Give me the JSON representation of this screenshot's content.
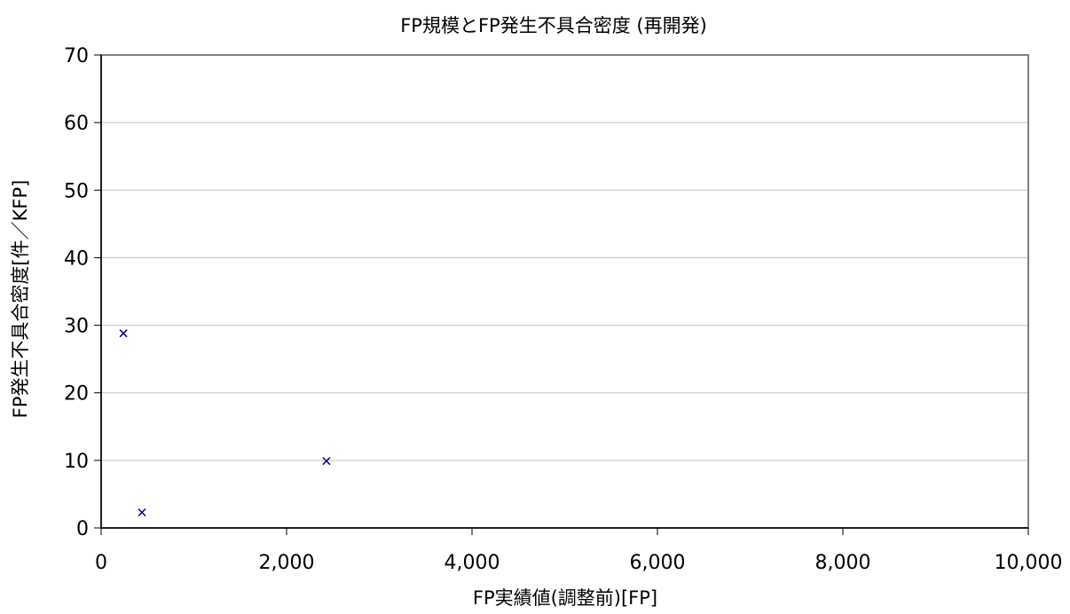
{
  "chart_data": {
    "type": "scatter",
    "title": "FP規模とFP発生不具合密度 (再開発)",
    "xlabel": "FP実績値(調整前)[FP]",
    "ylabel": "FP発生不具合密度[件／KFP]",
    "xlim": [
      0,
      10000
    ],
    "ylim": [
      0,
      70
    ],
    "x_ticks": [
      0,
      2000,
      4000,
      6000,
      8000,
      10000
    ],
    "x_tick_labels": [
      "0",
      "2,000",
      "4,000",
      "6,000",
      "8,000",
      "10,000"
    ],
    "y_ticks": [
      0,
      10,
      20,
      30,
      40,
      50,
      60,
      70
    ],
    "y_tick_labels": [
      "0",
      "10",
      "20",
      "30",
      "40",
      "50",
      "60",
      "70"
    ],
    "grid": "horizontal",
    "legend": "none",
    "marker": "x",
    "marker_color": "#000080",
    "points": [
      {
        "x": 240,
        "y": 28.8
      },
      {
        "x": 440,
        "y": 2.3
      },
      {
        "x": 2430,
        "y": 9.9
      }
    ]
  }
}
